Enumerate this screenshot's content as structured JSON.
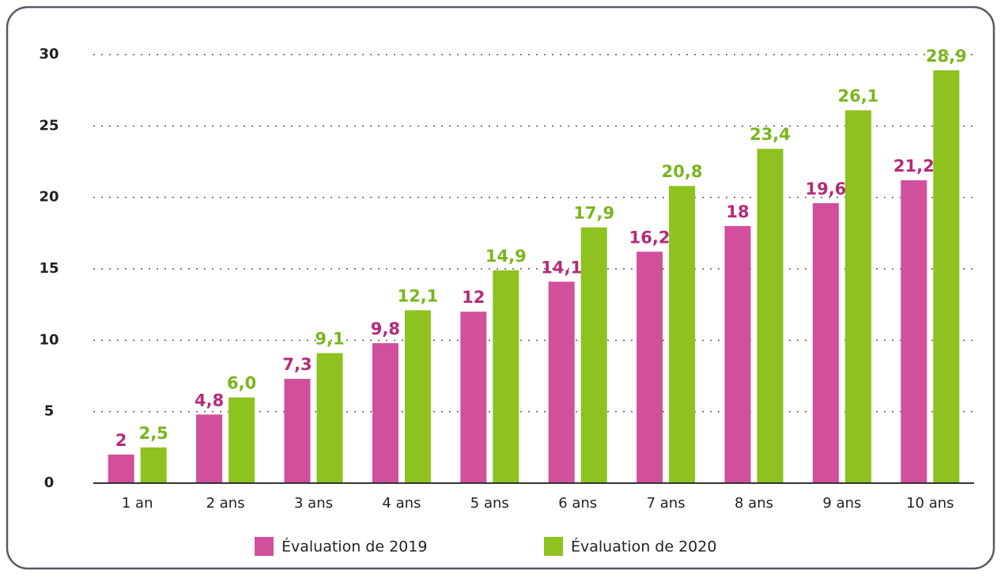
{
  "chart_data": {
    "type": "bar",
    "categories": [
      "1 an",
      "2 ans",
      "3 ans",
      "4 ans",
      "5 ans",
      "6 ans",
      "7 ans",
      "8 ans",
      "9 ans",
      "10 ans"
    ],
    "series": [
      {
        "name": "Évaluation de 2019",
        "color": "#d24f9c",
        "label_color": "#b52a78",
        "values": [
          2,
          4.8,
          7.3,
          9.8,
          12,
          14.1,
          16.2,
          18,
          19.6,
          21.2
        ],
        "value_labels": [
          "2",
          "4,8",
          "7,3",
          "9,8",
          "12",
          "14,1",
          "16,2",
          "18",
          "19,6",
          "21,2"
        ]
      },
      {
        "name": "Évaluation de 2020",
        "color": "#8dc21f",
        "label_color": "#7ab51d",
        "values": [
          2.5,
          6.0,
          9.1,
          12.1,
          14.9,
          17.9,
          20.8,
          23.4,
          26.1,
          28.9
        ],
        "value_labels": [
          "2,5",
          "6,0",
          "9,1",
          "12,1",
          "14,9",
          "17,9",
          "20,8",
          "23,4",
          "26,1",
          "28,9"
        ]
      }
    ],
    "ylim": [
      0,
      30
    ],
    "yticks": [
      0,
      5,
      10,
      15,
      20,
      25,
      30
    ],
    "grid": true,
    "legend": "bottom"
  }
}
